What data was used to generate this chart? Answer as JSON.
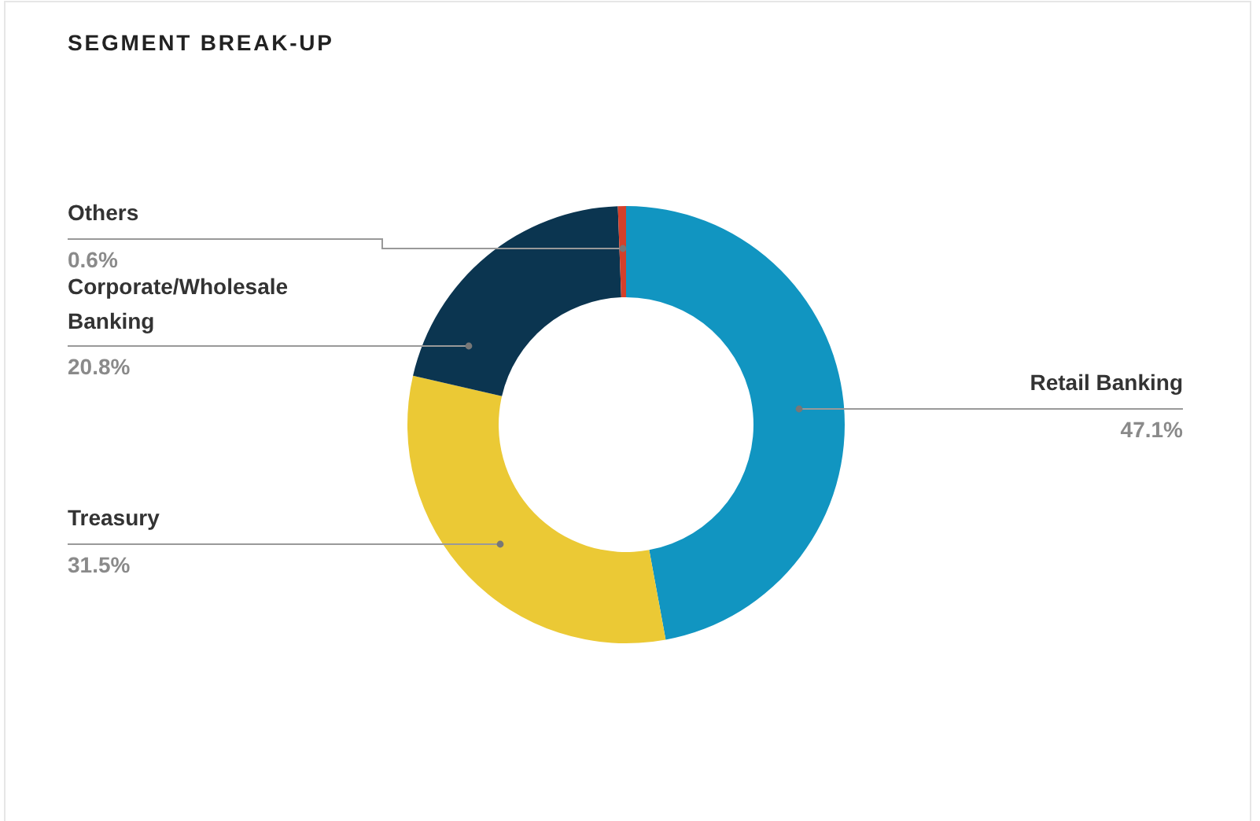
{
  "chart_data": {
    "type": "donut",
    "title": "SEGMENT BREAK-UP",
    "categories": [
      "Retail Banking",
      "Treasury",
      "Corporate/Wholesale Banking",
      "Others"
    ],
    "values": [
      47.1,
      31.5,
      20.8,
      0.6
    ],
    "colors": [
      "#1195c1",
      "#ebc935",
      "#0b3550",
      "#d4402a"
    ],
    "value_labels": [
      "47.1%",
      "31.5%",
      "20.8%",
      "0.6%"
    ]
  }
}
